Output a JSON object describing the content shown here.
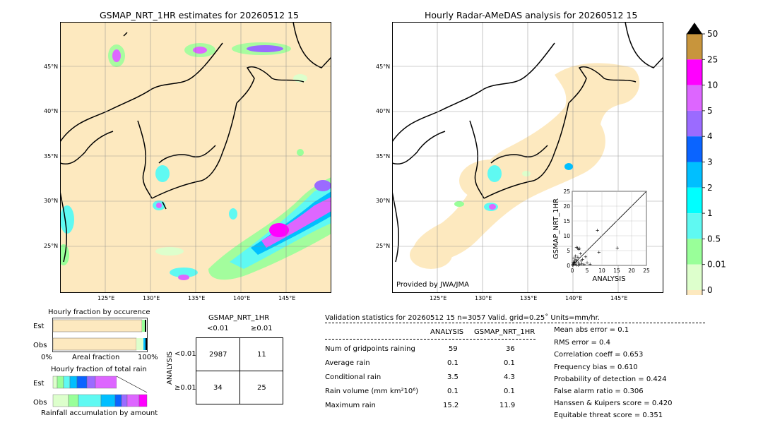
{
  "maps": {
    "left": {
      "title": "GSMAP_NRT_1HR estimates for 20260512 15",
      "lat_labels": [
        "45°N",
        "40°N",
        "35°N",
        "30°N",
        "25°N"
      ],
      "lon_labels": [
        "125°E",
        "130°E",
        "135°E",
        "140°E",
        "145°E"
      ]
    },
    "right": {
      "title": "Hourly Radar-AMeDAS analysis for 20260512 15",
      "lat_labels": [
        "45°N",
        "40°N",
        "35°N",
        "30°N",
        "25°N"
      ],
      "lon_labels": [
        "125°E",
        "130°E",
        "135°E",
        "140°E",
        "145°E"
      ],
      "credit": "Provided by JWA/JMA"
    }
  },
  "colorbar": {
    "ticks": [
      "50",
      "25",
      "10",
      "5",
      "4",
      "3",
      "2",
      "1",
      "0.5",
      "0.01",
      "0"
    ],
    "colors": [
      "#c8953c",
      "#ff00ff",
      "#dd66ff",
      "#9b6bff",
      "#0a64ff",
      "#00bfff",
      "#00ffff",
      "#5ff9f2",
      "#99ff99",
      "#ddffcc",
      "#fde9bf"
    ],
    "units": "mm/hr"
  },
  "scatter": {
    "xlabel": "ANALYSIS",
    "ylabel": "GSMAP_NRT_1HR",
    "ticks": [
      "0",
      "5",
      "10",
      "15",
      "20",
      "25"
    ]
  },
  "occurrence": {
    "title": "Hourly fraction by occurence",
    "rows": [
      "Est",
      "Obs"
    ],
    "axis_left": "0%",
    "axis_mid": "Areal fraction",
    "axis_right": "100%"
  },
  "total_rain": {
    "title": "Hourly fraction of total rain",
    "rows": [
      "Est",
      "Obs"
    ],
    "footer": "Rainfall accumulation by amount"
  },
  "contingency": {
    "title": "GSMAP_NRT_1HR",
    "col_headers": [
      "<0.01",
      "≥0.01"
    ],
    "row_label": "ANALYSIS",
    "row_headers": [
      "<0.01",
      "≥0.01"
    ],
    "cells": [
      [
        "2987",
        "11"
      ],
      [
        "34",
        "25"
      ]
    ]
  },
  "validation": {
    "header": "Validation statistics for 20260512 15  n=3057 Valid. grid=0.25˚ Units=mm/hr.",
    "col_analysis": "ANALYSIS",
    "col_gsmap": "GSMAP_NRT_1HR",
    "rows": [
      {
        "label": "Num of gridpoints raining",
        "a": "59",
        "g": "36"
      },
      {
        "label": "Average rain",
        "a": "0.1",
        "g": "0.1"
      },
      {
        "label": "Conditional rain",
        "a": "3.5",
        "g": "4.3"
      },
      {
        "label": "Rain volume (mm km²10⁶)",
        "a": "0.1",
        "g": "0.1"
      },
      {
        "label": "Maximum rain",
        "a": "15.2",
        "g": "11.9"
      }
    ],
    "scores": [
      "Mean abs error =    0.1",
      "RMS error =    0.4",
      "Correlation coeff =  0.653",
      "Frequency bias =  0.610",
      "Probability of detection =  0.424",
      "False alarm ratio =  0.306",
      "Hanssen & Kuipers score =  0.420",
      "Equitable threat score =  0.351"
    ]
  },
  "chart_data": {
    "type": "scatter",
    "xlabel": "ANALYSIS",
    "ylabel": "GSMAP_NRT_1HR",
    "xlim": [
      0,
      25
    ],
    "ylim": [
      0,
      25
    ],
    "points": [
      [
        0.2,
        0.3
      ],
      [
        0.5,
        0.8
      ],
      [
        0.8,
        1.5
      ],
      [
        1.0,
        0.5
      ],
      [
        1.2,
        2.0
      ],
      [
        1.5,
        0.2
      ],
      [
        1.8,
        6.0
      ],
      [
        2.0,
        1.0
      ],
      [
        2.2,
        5.5
      ],
      [
        2.5,
        0.3
      ],
      [
        2.8,
        4.0
      ],
      [
        3.0,
        1.5
      ],
      [
        0.3,
        1.2
      ],
      [
        0.6,
        2.5
      ],
      [
        1.1,
        3.2
      ],
      [
        1.4,
        6.2
      ],
      [
        1.9,
        2.8
      ],
      [
        2.4,
        5.8
      ],
      [
        3.2,
        0.6
      ],
      [
        3.5,
        2.2
      ],
      [
        4.0,
        0.4
      ],
      [
        4.5,
        3.0
      ],
      [
        5.0,
        1.0
      ],
      [
        6.0,
        0.5
      ],
      [
        8.5,
        11.9
      ],
      [
        9.0,
        4.5
      ],
      [
        15.2,
        6.0
      ],
      [
        0.1,
        0.1
      ],
      [
        0.4,
        0.2
      ],
      [
        0.9,
        0.9
      ],
      [
        1.6,
        1.6
      ],
      [
        2.1,
        0.1
      ]
    ]
  }
}
